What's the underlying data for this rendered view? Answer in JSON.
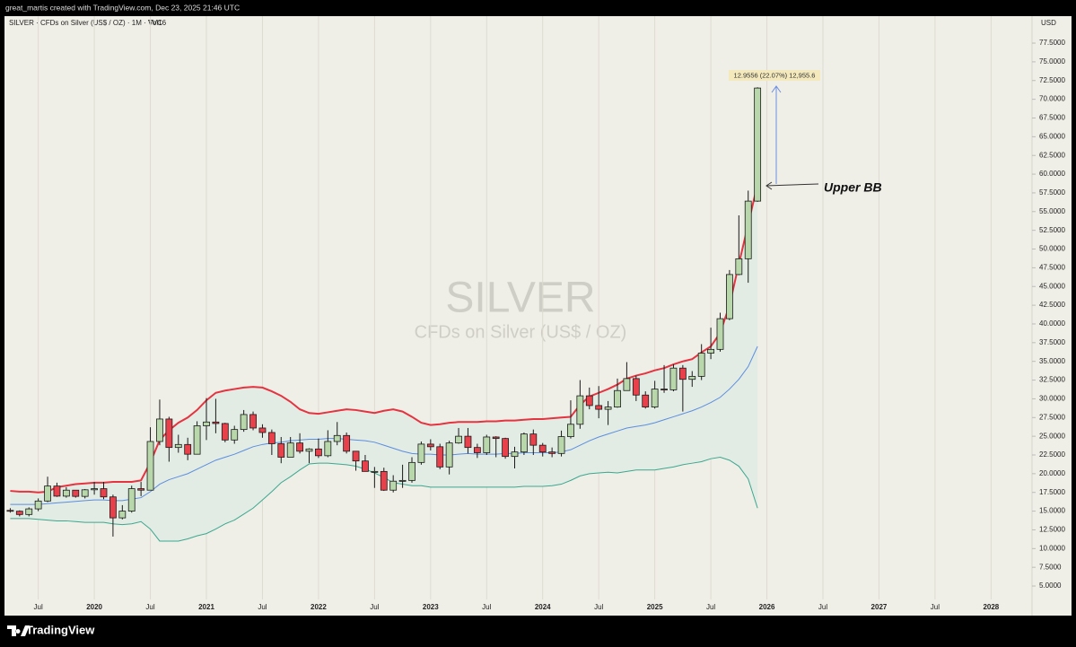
{
  "chart_data": {
    "type": "candlestick",
    "header": "great_martis created with TradingView.com, Dec 23, 2025 21:46 UTC",
    "title": "SILVER · CFDs on Silver (US$ / OZ) · 1M · TVC",
    "indicator": "Vol16",
    "watermark": "SILVER",
    "watermark_subtitle": "CFDs on Silver (US$ / OZ)",
    "currency": "USD",
    "brand": "TradingView",
    "measure_label": "12.9556 (22.07%) 12,955.6",
    "annotation": "Upper BB",
    "up_color": "#b8d7aa",
    "down_color": "#e8414b",
    "x": [
      "2019-04",
      "2019-05",
      "2019-06",
      "2019-07",
      "2019-08",
      "2019-09",
      "2019-10",
      "2019-11",
      "2019-12",
      "2020-01",
      "2020-02",
      "2020-03",
      "2020-04",
      "2020-05",
      "2020-06",
      "2020-07",
      "2020-08",
      "2020-09",
      "2020-10",
      "2020-11",
      "2020-12",
      "2021-01",
      "2021-02",
      "2021-03",
      "2021-04",
      "2021-05",
      "2021-06",
      "2021-07",
      "2021-08",
      "2021-09",
      "2021-10",
      "2021-11",
      "2021-12",
      "2022-01",
      "2022-02",
      "2022-03",
      "2022-04",
      "2022-05",
      "2022-06",
      "2022-07",
      "2022-08",
      "2022-09",
      "2022-10",
      "2022-11",
      "2022-12",
      "2023-01",
      "2023-02",
      "2023-03",
      "2023-04",
      "2023-05",
      "2023-06",
      "2023-07",
      "2023-08",
      "2023-09",
      "2023-10",
      "2023-11",
      "2023-12",
      "2024-01",
      "2024-02",
      "2024-03",
      "2024-04",
      "2024-05",
      "2024-06",
      "2024-07",
      "2024-08",
      "2024-09",
      "2024-10",
      "2024-11",
      "2024-12",
      "2025-01",
      "2025-02",
      "2025-03",
      "2025-04",
      "2025-05",
      "2025-06",
      "2025-07",
      "2025-08",
      "2025-09",
      "2025-10",
      "2025-11",
      "2025-12"
    ],
    "open": [
      15.1,
      14.99,
      14.55,
      15.3,
      16.35,
      18.35,
      17.0,
      17.8,
      16.97,
      17.85,
      18.0,
      16.9,
      14.1,
      15.0,
      18.0,
      17.8,
      24.3,
      27.3,
      23.5,
      23.9,
      22.6,
      26.4,
      26.9,
      26.7,
      24.5,
      25.9,
      27.9,
      26.1,
      25.5,
      24.0,
      22.2,
      24.1,
      23.0,
      23.3,
      22.4,
      24.3,
      25.1,
      23.0,
      21.7,
      20.3,
      20.3,
      17.8,
      19.0,
      19.1,
      21.5,
      23.95,
      23.6,
      20.9,
      24.1,
      25.0,
      23.5,
      22.8,
      24.9,
      24.7,
      22.3,
      22.9,
      25.3,
      23.8,
      22.9,
      22.7,
      24.95,
      26.6,
      30.4,
      29.1,
      28.6,
      28.9,
      31.1,
      32.7,
      30.5,
      28.9,
      31.3,
      31.2,
      34.1,
      32.6,
      33.0,
      36.1,
      36.6,
      40.7,
      46.6,
      48.7,
      56.4
    ],
    "high": [
      15.4,
      15.1,
      15.5,
      16.7,
      19.6,
      18.8,
      18.2,
      17.8,
      17.95,
      18.9,
      18.9,
      17.2,
      15.8,
      18.4,
      18.9,
      26.2,
      29.9,
      27.6,
      25.2,
      24.8,
      27.0,
      30.1,
      30.0,
      26.8,
      26.4,
      28.5,
      28.3,
      26.6,
      25.9,
      24.9,
      24.9,
      25.4,
      23.4,
      24.7,
      25.8,
      26.9,
      25.5,
      22.6,
      22.5,
      20.9,
      20.8,
      19.8,
      21.2,
      22.2,
      24.3,
      24.6,
      24.0,
      24.4,
      26.1,
      26.1,
      24.0,
      25.2,
      25.0,
      24.8,
      23.6,
      25.5,
      25.9,
      24.1,
      23.5,
      25.75,
      29.8,
      32.5,
      31.5,
      31.7,
      29.7,
      32.7,
      34.9,
      33.1,
      31.0,
      32.4,
      34.5,
      34.6,
      34.5,
      33.7,
      37.3,
      39.5,
      41.5,
      47.2,
      54.5,
      57.8,
      71.6
    ],
    "low": [
      14.8,
      14.3,
      14.3,
      15.0,
      16.2,
      16.9,
      16.8,
      16.8,
      16.7,
      17.2,
      16.6,
      11.6,
      13.9,
      14.8,
      17.0,
      17.8,
      23.8,
      21.6,
      22.8,
      21.8,
      22.6,
      24.5,
      25.4,
      24.2,
      24.0,
      25.6,
      25.8,
      24.8,
      22.5,
      21.4,
      22.2,
      22.7,
      21.4,
      22.1,
      22.2,
      23.8,
      22.7,
      20.4,
      20.3,
      18.1,
      17.7,
      17.5,
      18.1,
      18.8,
      21.2,
      23.1,
      20.6,
      19.9,
      24.0,
      22.7,
      22.1,
      22.5,
      22.2,
      22.0,
      20.7,
      22.5,
      22.5,
      22.3,
      22.2,
      22.3,
      24.7,
      26.0,
      28.6,
      27.4,
      26.5,
      28.8,
      31.1,
      29.7,
      28.7,
      28.7,
      30.8,
      31.0,
      28.3,
      31.6,
      32.5,
      35.3,
      36.3,
      40.5,
      46.5,
      45.5,
      56.3
    ],
    "close": [
      14.99,
      14.55,
      15.3,
      16.35,
      18.35,
      17.0,
      17.8,
      16.97,
      17.85,
      18.0,
      16.9,
      14.1,
      15.0,
      18.0,
      17.8,
      24.3,
      27.3,
      23.5,
      23.9,
      22.6,
      26.4,
      26.9,
      26.7,
      24.5,
      25.9,
      27.9,
      26.1,
      25.5,
      24.0,
      22.2,
      24.1,
      23.0,
      23.3,
      22.4,
      24.3,
      25.1,
      23.0,
      21.7,
      20.3,
      20.3,
      17.8,
      19.0,
      19.1,
      21.5,
      23.95,
      23.6,
      20.9,
      24.1,
      25.0,
      23.5,
      22.8,
      24.9,
      24.7,
      22.3,
      22.9,
      25.3,
      23.8,
      22.9,
      22.7,
      24.95,
      26.6,
      30.4,
      29.1,
      28.6,
      28.9,
      31.1,
      32.7,
      30.5,
      28.9,
      31.3,
      31.2,
      34.1,
      32.6,
      33.0,
      36.1,
      36.6,
      40.7,
      46.6,
      48.7,
      56.4,
      71.5
    ],
    "bands": {
      "fill": "#e2ebe4",
      "upper": {
        "color": "#e53340",
        "values": [
          17.7,
          17.6,
          17.6,
          17.5,
          17.6,
          18.2,
          18.4,
          18.6,
          18.7,
          18.8,
          18.8,
          18.9,
          18.9,
          18.9,
          19.1,
          21.5,
          24.5,
          25.8,
          26.8,
          27.5,
          28.5,
          29.8,
          30.8,
          31.1,
          31.3,
          31.5,
          31.6,
          31.5,
          31.0,
          30.4,
          29.6,
          28.6,
          28.1,
          28.0,
          28.2,
          28.4,
          28.6,
          28.5,
          28.3,
          28.1,
          28.4,
          28.6,
          28.3,
          27.6,
          26.8,
          26.5,
          26.6,
          26.8,
          26.9,
          26.9,
          26.9,
          27.0,
          27.0,
          27.1,
          27.1,
          27.2,
          27.3,
          27.3,
          27.4,
          27.5,
          27.6,
          29.2,
          30.3,
          30.8,
          31.3,
          31.9,
          32.7,
          33.1,
          33.4,
          33.8,
          34.1,
          34.6,
          35.0,
          35.3,
          36.2,
          37.0,
          38.8,
          42.5,
          48.0,
          53.3,
          58.7
        ]
      },
      "basis": {
        "color": "#5b8ee0",
        "values": [
          15.9,
          15.9,
          15.9,
          15.9,
          16.0,
          16.1,
          16.2,
          16.3,
          16.4,
          16.5,
          16.5,
          16.4,
          16.4,
          16.6,
          16.8,
          17.6,
          18.6,
          19.2,
          19.6,
          20.0,
          20.6,
          21.2,
          21.8,
          22.2,
          22.6,
          23.1,
          23.6,
          23.9,
          24.1,
          24.2,
          24.4,
          24.5,
          24.6,
          24.6,
          24.7,
          24.7,
          24.6,
          24.5,
          24.4,
          24.2,
          23.8,
          23.4,
          23.0,
          22.7,
          22.6,
          22.6,
          22.5,
          22.5,
          22.6,
          22.7,
          22.6,
          22.6,
          22.6,
          22.7,
          22.7,
          22.8,
          22.8,
          22.8,
          22.8,
          22.9,
          23.2,
          23.8,
          24.4,
          24.9,
          25.3,
          25.7,
          26.1,
          26.3,
          26.5,
          26.8,
          27.2,
          27.6,
          28.0,
          28.4,
          28.9,
          29.5,
          30.2,
          31.3,
          32.6,
          34.3,
          37.0
        ]
      },
      "lower": {
        "color": "#3aa88f",
        "values": [
          14.0,
          14.0,
          14.0,
          13.9,
          13.8,
          13.7,
          13.7,
          13.6,
          13.5,
          13.5,
          13.5,
          13.3,
          13.2,
          13.3,
          13.6,
          12.6,
          11.0,
          11.0,
          11.0,
          11.3,
          11.7,
          12.0,
          12.6,
          13.3,
          13.8,
          14.6,
          15.4,
          16.5,
          17.6,
          18.8,
          19.6,
          20.5,
          21.3,
          21.4,
          21.4,
          21.3,
          21.2,
          21.0,
          20.6,
          20.1,
          19.5,
          18.8,
          18.6,
          18.4,
          18.4,
          18.2,
          18.2,
          18.2,
          18.2,
          18.2,
          18.2,
          18.2,
          18.2,
          18.2,
          18.2,
          18.3,
          18.3,
          18.3,
          18.4,
          18.6,
          19.1,
          19.7,
          20.0,
          20.1,
          20.2,
          20.1,
          20.3,
          20.5,
          20.5,
          20.5,
          20.7,
          20.9,
          21.2,
          21.4,
          21.6,
          22.0,
          22.2,
          21.8,
          21.0,
          19.3,
          15.4
        ]
      }
    },
    "xlim": [
      "2019-03",
      "2028-05"
    ],
    "xticks": [
      {
        "value": "2019-07",
        "label": "Jul"
      },
      {
        "value": "2020-01",
        "label": "2020"
      },
      {
        "value": "2020-07",
        "label": "Jul"
      },
      {
        "value": "2021-01",
        "label": "2021"
      },
      {
        "value": "2021-07",
        "label": "Jul"
      },
      {
        "value": "2022-01",
        "label": "2022"
      },
      {
        "value": "2022-07",
        "label": "Jul"
      },
      {
        "value": "2023-01",
        "label": "2023"
      },
      {
        "value": "2023-07",
        "label": "Jul"
      },
      {
        "value": "2024-01",
        "label": "2024"
      },
      {
        "value": "2024-07",
        "label": "Jul"
      },
      {
        "value": "2025-01",
        "label": "2025"
      },
      {
        "value": "2025-07",
        "label": "Jul"
      },
      {
        "value": "2026-01",
        "label": "2026"
      },
      {
        "value": "2026-07",
        "label": "Jul"
      },
      {
        "value": "2027-01",
        "label": "2027"
      },
      {
        "value": "2027-07",
        "label": "Jul"
      },
      {
        "value": "2028-01",
        "label": "2028"
      }
    ],
    "ylim": [
      1.05,
      81.1
    ],
    "yticks": [
      {
        "value": 5,
        "label": "5.0000"
      },
      {
        "value": 7.5,
        "label": "7.5000"
      },
      {
        "value": 10,
        "label": "10.0000"
      },
      {
        "value": 12.5,
        "label": "12.5000"
      },
      {
        "value": 15,
        "label": "15.0000"
      },
      {
        "value": 17.5,
        "label": "17.5000"
      },
      {
        "value": 20,
        "label": "20.0000"
      },
      {
        "value": 22.5,
        "label": "22.5000"
      },
      {
        "value": 25,
        "label": "25.0000"
      },
      {
        "value": 27.5,
        "label": "27.5000"
      },
      {
        "value": 30,
        "label": "30.0000"
      },
      {
        "value": 32.5,
        "label": "32.5000"
      },
      {
        "value": 35,
        "label": "35.0000"
      },
      {
        "value": 37.5,
        "label": "37.5000"
      },
      {
        "value": 40,
        "label": "40.0000"
      },
      {
        "value": 42.5,
        "label": "42.5000"
      },
      {
        "value": 45,
        "label": "45.0000"
      },
      {
        "value": 47.5,
        "label": "47.5000"
      },
      {
        "value": 50,
        "label": "50.0000"
      },
      {
        "value": 52.5,
        "label": "52.5000"
      },
      {
        "value": 55,
        "label": "55.0000"
      },
      {
        "value": 57.5,
        "label": "57.5000"
      },
      {
        "value": 60,
        "label": "60.0000"
      },
      {
        "value": 62.5,
        "label": "62.5000"
      },
      {
        "value": 65,
        "label": "65.0000"
      },
      {
        "value": 67.5,
        "label": "67.5000"
      },
      {
        "value": 70,
        "label": "70.0000"
      },
      {
        "value": 72.5,
        "label": "72.5000"
      },
      {
        "value": 75,
        "label": "75.0000"
      },
      {
        "value": 77.5,
        "label": "77.5000"
      }
    ],
    "grid": "vertical"
  }
}
